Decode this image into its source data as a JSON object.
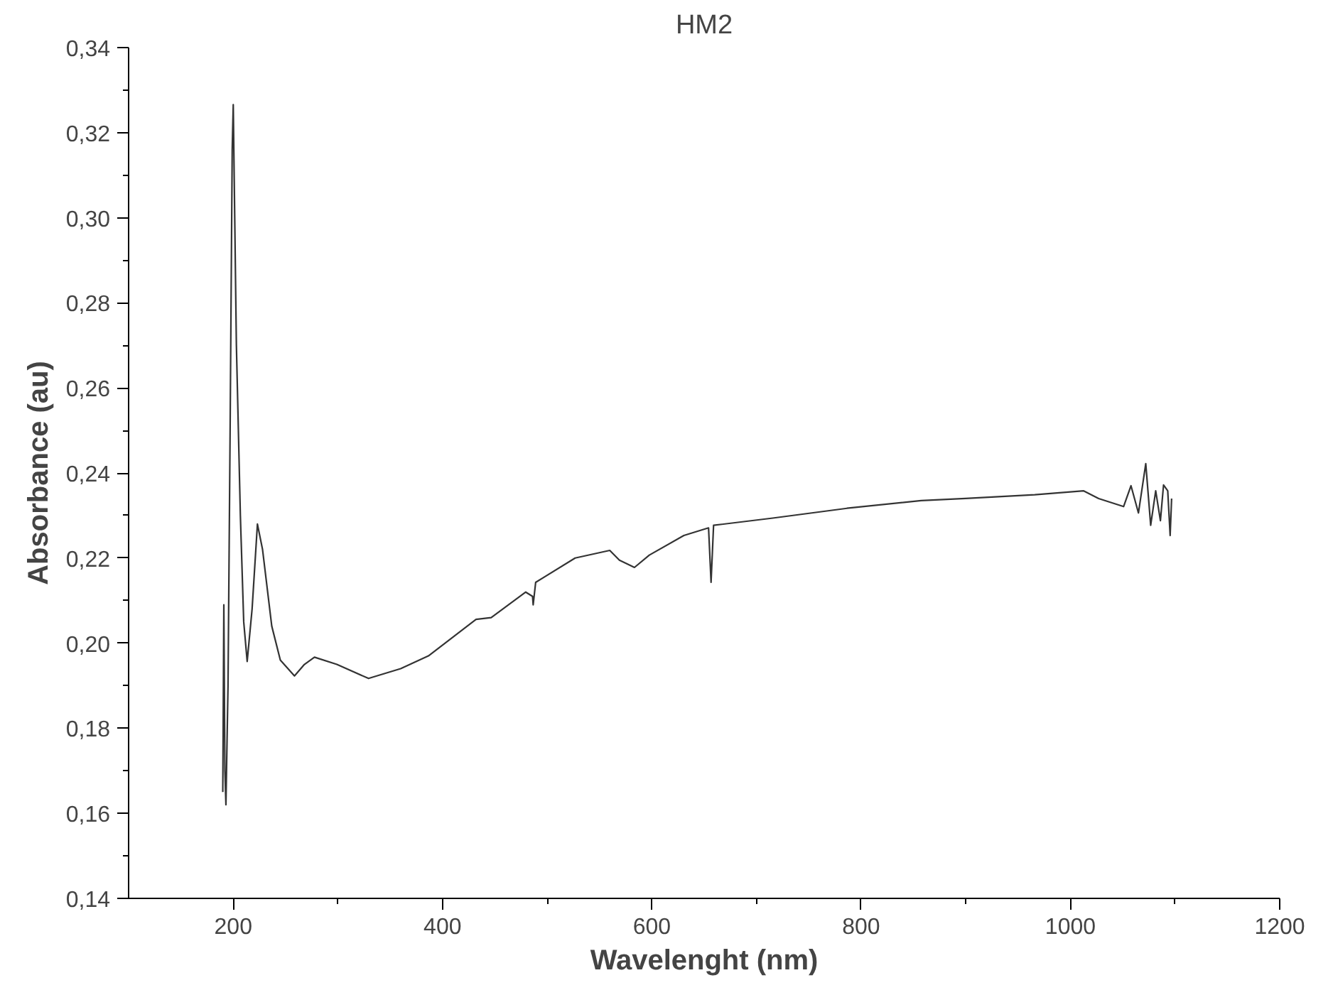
{
  "chart_data": {
    "type": "line",
    "title": "HM2",
    "xlabel": "Wavelenght (nm)",
    "ylabel": "Absorbance (au)",
    "xlim": [
      100,
      1200
    ],
    "ylim": [
      0.14,
      0.34
    ],
    "xticks": [
      200,
      400,
      600,
      800,
      1000,
      1200
    ],
    "yticks": [
      {
        "value": 0.14,
        "label": "0,14"
      },
      {
        "value": 0.16,
        "label": "0,16"
      },
      {
        "value": 0.18,
        "label": "0,18"
      },
      {
        "value": 0.2,
        "label": "0,20"
      },
      {
        "value": 0.22,
        "label": "0,22"
      },
      {
        "value": 0.24,
        "label": "0,24"
      },
      {
        "value": 0.26,
        "label": "0,26"
      },
      {
        "value": 0.28,
        "label": "0,28"
      },
      {
        "value": 0.3,
        "label": "0,30"
      },
      {
        "value": 0.32,
        "label": "0,32"
      },
      {
        "value": 0.34,
        "label": "0,34"
      }
    ],
    "grid": false,
    "marker": "none",
    "line_style": "solid",
    "series": [
      {
        "color": "#333333",
        "x": [
          190,
          191,
          192,
          193,
          195,
          197,
          199,
          200,
          203,
          206.8,
          210,
          213.3,
          218,
          223.1,
          228,
          236.8,
          245,
          258.5,
          268,
          277.6,
          299,
          329.3,
          360,
          386.5,
          432,
          446.5,
          479.5,
          486,
          486.6,
          489,
          526.7,
          559.8,
          569,
          583.4,
          597.6,
          630.6,
          654.2,
          656.6,
          659,
          715.6,
          786.4,
          857.3,
          899.7,
          965.9,
          1012.7,
          1027,
          1050.8,
          1057.9,
          1065,
          1072,
          1076.7,
          1081.5,
          1086,
          1089,
          1093,
          1095.3,
          1096.7
        ],
        "values": [
          0.165,
          0.209,
          0.17,
          0.162,
          0.19,
          0.25,
          0.316,
          0.3266,
          0.27,
          0.23,
          0.205,
          0.1957,
          0.208,
          0.228,
          0.222,
          0.204,
          0.196,
          0.1923,
          0.195,
          0.1967,
          0.195,
          0.1917,
          0.194,
          0.197,
          0.2056,
          0.206,
          0.212,
          0.211,
          0.209,
          0.2143,
          0.22,
          0.2218,
          0.2195,
          0.2178,
          0.2207,
          0.2253,
          0.2271,
          0.2143,
          0.2277,
          0.2294,
          0.2317,
          0.2335,
          0.234,
          0.2349,
          0.2358,
          0.234,
          0.2321,
          0.237,
          0.2306,
          0.2422,
          0.2277,
          0.2358,
          0.2288,
          0.2372,
          0.2358,
          0.2253,
          0.234
        ]
      }
    ]
  }
}
